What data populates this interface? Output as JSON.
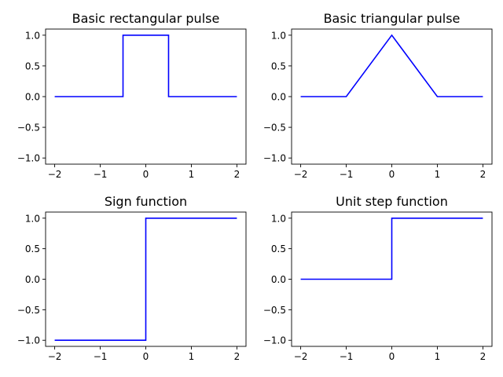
{
  "chart_data": [
    {
      "type": "line",
      "title": "Basic rectangular pulse",
      "xlabel": "",
      "ylabel": "",
      "xlim": [
        -2.2,
        2.2
      ],
      "ylim": [
        -1.1,
        1.1
      ],
      "xticks": [
        -2,
        -1,
        0,
        1,
        2
      ],
      "xtick_labels": [
        "−2",
        "−1",
        "0",
        "1",
        "2"
      ],
      "yticks": [
        1.0,
        0.5,
        0.0,
        -0.5,
        -1.0
      ],
      "ytick_labels": [
        "1.0",
        "0.5",
        "0.0",
        "−0.5",
        "−1.0"
      ],
      "grid": false,
      "series": [
        {
          "color": "#0000ff",
          "x": [
            -2,
            -0.5,
            -0.5,
            0.5,
            0.5,
            2
          ],
          "y": [
            0,
            0,
            1,
            1,
            0,
            0
          ]
        }
      ]
    },
    {
      "type": "line",
      "title": "Basic triangular pulse",
      "xlabel": "",
      "ylabel": "",
      "xlim": [
        -2.2,
        2.2
      ],
      "ylim": [
        -1.1,
        1.1
      ],
      "xticks": [
        -2,
        -1,
        0,
        1,
        2
      ],
      "xtick_labels": [
        "−2",
        "−1",
        "0",
        "1",
        "2"
      ],
      "yticks": [
        1.0,
        0.5,
        0.0,
        -0.5,
        -1.0
      ],
      "ytick_labels": [
        "1.0",
        "0.5",
        "0.0",
        "−0.5",
        "−1.0"
      ],
      "grid": false,
      "series": [
        {
          "color": "#0000ff",
          "x": [
            -2,
            -1,
            0,
            1,
            2
          ],
          "y": [
            0,
            0,
            1,
            0,
            0
          ]
        }
      ]
    },
    {
      "type": "line",
      "title": "Sign function",
      "xlabel": "",
      "ylabel": "",
      "xlim": [
        -2.2,
        2.2
      ],
      "ylim": [
        -1.1,
        1.1
      ],
      "xticks": [
        -2,
        -1,
        0,
        1,
        2
      ],
      "xtick_labels": [
        "−2",
        "−1",
        "0",
        "1",
        "2"
      ],
      "yticks": [
        1.0,
        0.5,
        0.0,
        -0.5,
        -1.0
      ],
      "ytick_labels": [
        "1.0",
        "0.5",
        "0.0",
        "−0.5",
        "−1.0"
      ],
      "grid": false,
      "series": [
        {
          "color": "#0000ff",
          "x": [
            -2,
            0,
            0,
            2
          ],
          "y": [
            -1,
            -1,
            1,
            1
          ]
        }
      ]
    },
    {
      "type": "line",
      "title": "Unit step function",
      "xlabel": "",
      "ylabel": "",
      "xlim": [
        -2.2,
        2.2
      ],
      "ylim": [
        -1.1,
        1.1
      ],
      "xticks": [
        -2,
        -1,
        0,
        1,
        2
      ],
      "xtick_labels": [
        "−2",
        "−1",
        "0",
        "1",
        "2"
      ],
      "yticks": [
        1.0,
        0.5,
        0.0,
        -0.5,
        -1.0
      ],
      "ytick_labels": [
        "1.0",
        "0.5",
        "0.0",
        "−0.5",
        "−1.0"
      ],
      "grid": false,
      "series": [
        {
          "color": "#0000ff",
          "x": [
            -2,
            0,
            0,
            2
          ],
          "y": [
            0,
            0,
            1,
            1
          ]
        }
      ]
    }
  ]
}
